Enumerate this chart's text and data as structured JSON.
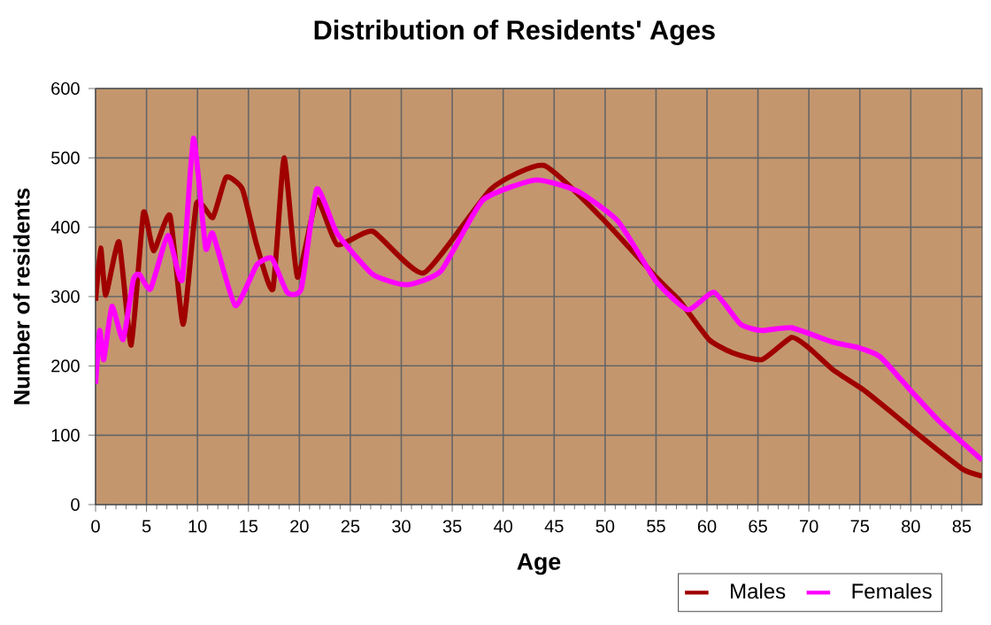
{
  "chart_data": {
    "type": "line",
    "title": "Distribution of Residents' Ages",
    "xlabel": "Age",
    "ylabel": "Number of residents",
    "xlim": [
      0,
      87
    ],
    "ylim": [
      0,
      600
    ],
    "xticks": [
      0,
      5,
      10,
      15,
      20,
      25,
      30,
      35,
      40,
      45,
      50,
      55,
      60,
      65,
      70,
      75,
      80,
      85
    ],
    "yticks": [
      0,
      100,
      200,
      300,
      400,
      500,
      600
    ],
    "grid": true,
    "legend": "bottom right",
    "marker": "none",
    "line_style": "solid",
    "series": [
      {
        "name": "Males",
        "color": "#a00000",
        "x": [
          0,
          0.5,
          1,
          2.3,
          3.5,
          4.7,
          5.7,
          7.3,
          8.6,
          9.9,
          11.5,
          12.8,
          14.4,
          15.8,
          17.4,
          18.5,
          19.8,
          21.7,
          23.7,
          27.2,
          32.2,
          38.8,
          44,
          49.7,
          55,
          57.3,
          60.2,
          62.5,
          65.4,
          68.3,
          70,
          72.4,
          75.3,
          78.1,
          81,
          85.1,
          87
        ],
        "values": [
          294,
          370,
          302,
          379,
          230,
          421,
          366,
          417,
          260,
          434,
          414,
          472,
          455,
          375,
          311,
          500,
          328,
          440,
          375,
          394,
          334,
          455,
          489,
          413,
          328,
          294,
          238,
          219,
          209,
          241,
          226,
          194,
          166,
          133,
          98,
          51,
          41
        ]
      },
      {
        "name": "Females",
        "color": "#ff00ff",
        "x": [
          0,
          0.4,
          0.8,
          1.6,
          2.7,
          3.7,
          4.3,
          5.4,
          7.1,
          8.5,
          9.6,
          10.8,
          11.5,
          13.7,
          15.8,
          17.3,
          18.8,
          20.2,
          21.7,
          23.7,
          27.2,
          30.5,
          33.9,
          38,
          43.2,
          47.3,
          51.3,
          55,
          58.1,
          60.7,
          63.3,
          65.4,
          68.3,
          72.4,
          74.7,
          77,
          79.9,
          82.8,
          87
        ],
        "values": [
          174,
          251,
          209,
          286,
          238,
          324,
          332,
          311,
          388,
          324,
          528,
          370,
          391,
          287,
          345,
          355,
          306,
          312,
          455,
          391,
          332,
          317,
          337,
          439,
          468,
          452,
          408,
          322,
          281,
          306,
          260,
          251,
          255,
          234,
          227,
          213,
          166,
          120,
          64
        ]
      }
    ]
  }
}
